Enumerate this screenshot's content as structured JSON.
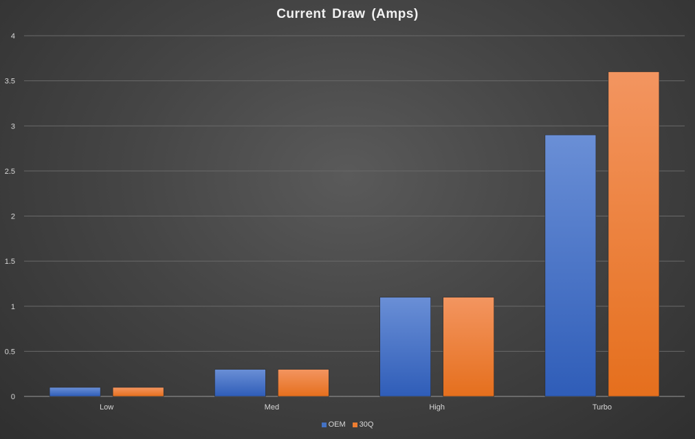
{
  "chart_data": {
    "type": "bar",
    "title": "Current Draw (Amps)",
    "xlabel": "",
    "ylabel": "",
    "categories": [
      "Low",
      "Med",
      "High",
      "Turbo"
    ],
    "series": [
      {
        "name": "OEM",
        "values": [
          0.1,
          0.3,
          1.1,
          2.9
        ],
        "color": "#4472c4"
      },
      {
        "name": "30Q",
        "values": [
          0.1,
          0.3,
          1.1,
          3.6
        ],
        "color": "#ed7d31"
      }
    ],
    "ylim": [
      0,
      4
    ],
    "yticks": [
      0,
      0.5,
      1,
      1.5,
      2,
      2.5,
      3,
      3.5,
      4
    ],
    "grid": true,
    "legend_position": "bottom"
  }
}
